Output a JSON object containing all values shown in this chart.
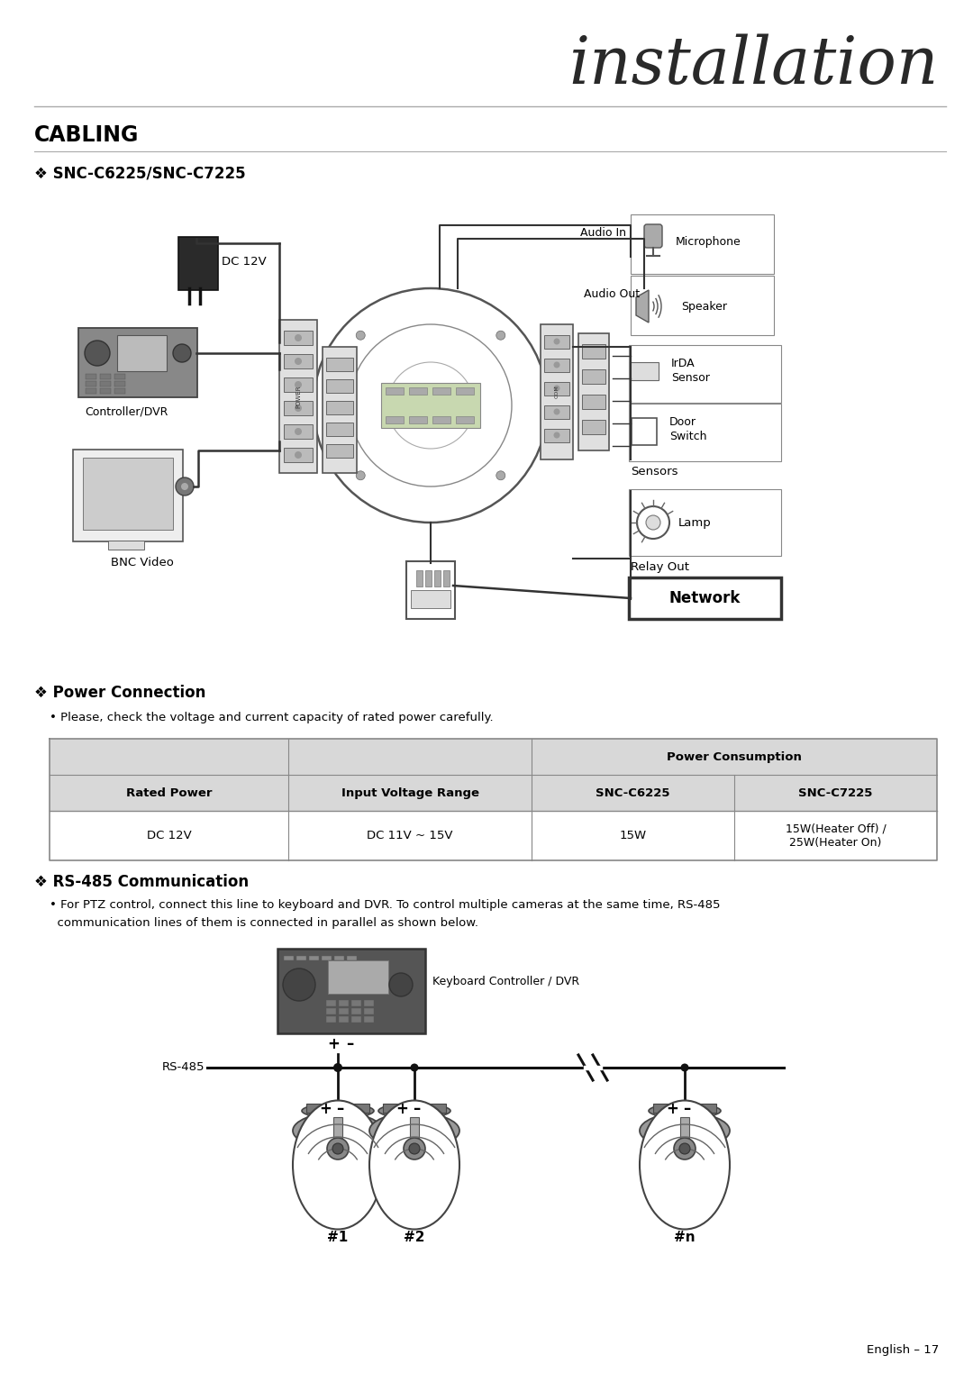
{
  "title_installation": "installation",
  "section_cabling": "CABLING",
  "subsection1": "❖ SNC-C6225/SNC-C7225",
  "subsection2": "❖ Power Connection",
  "subsection3": "❖ RS-485 Communication",
  "power_bullet": "• Please, check the voltage and current capacity of rated power carefully.",
  "rs485_bullet1": "• For PTZ control, connect this line to keyboard and DVR. To control multiple cameras at the same time, RS-485",
  "rs485_bullet2": "  communication lines of them is connected in parallel as shown below.",
  "table_header1": "Rated Power",
  "table_header2": "Input Voltage Range",
  "table_header3": "Power Consumption",
  "table_subheader1": "SNC-C6225",
  "table_subheader2": "SNC-C7225",
  "table_row1_c1": "DC 12V",
  "table_row1_c2": "DC 11V ~ 15V",
  "table_row1_c3": "15W",
  "table_row1_c4a": "15W(Heater Off) /",
  "table_row1_c4b": "25W(Heater On)",
  "label_dc12v": "DC 12V",
  "label_controller": "Controller/DVR",
  "label_bnc": "BNC Video",
  "label_audio_in": "Audio In",
  "label_audio_out": "Audio Out",
  "label_microphone": "Microphone",
  "label_speaker": "Speaker",
  "label_irda": "IrDA\nSensor",
  "label_door": "Door\nSwitch",
  "label_sensors": "Sensors",
  "label_lamp": "Lamp",
  "label_relay": "Relay Out",
  "label_network": "Network",
  "label_rs485": "RS-485",
  "label_keyboard": "Keyboard Controller / DVR",
  "label_cam1": "#1",
  "label_cam2": "#2",
  "label_camn": "#n",
  "footer": "English – 17",
  "bg_color": "#ffffff",
  "text_color": "#000000",
  "line_color": "#888888",
  "gray_header": "#c8c8c8",
  "gray_bg": "#d8d8d8"
}
